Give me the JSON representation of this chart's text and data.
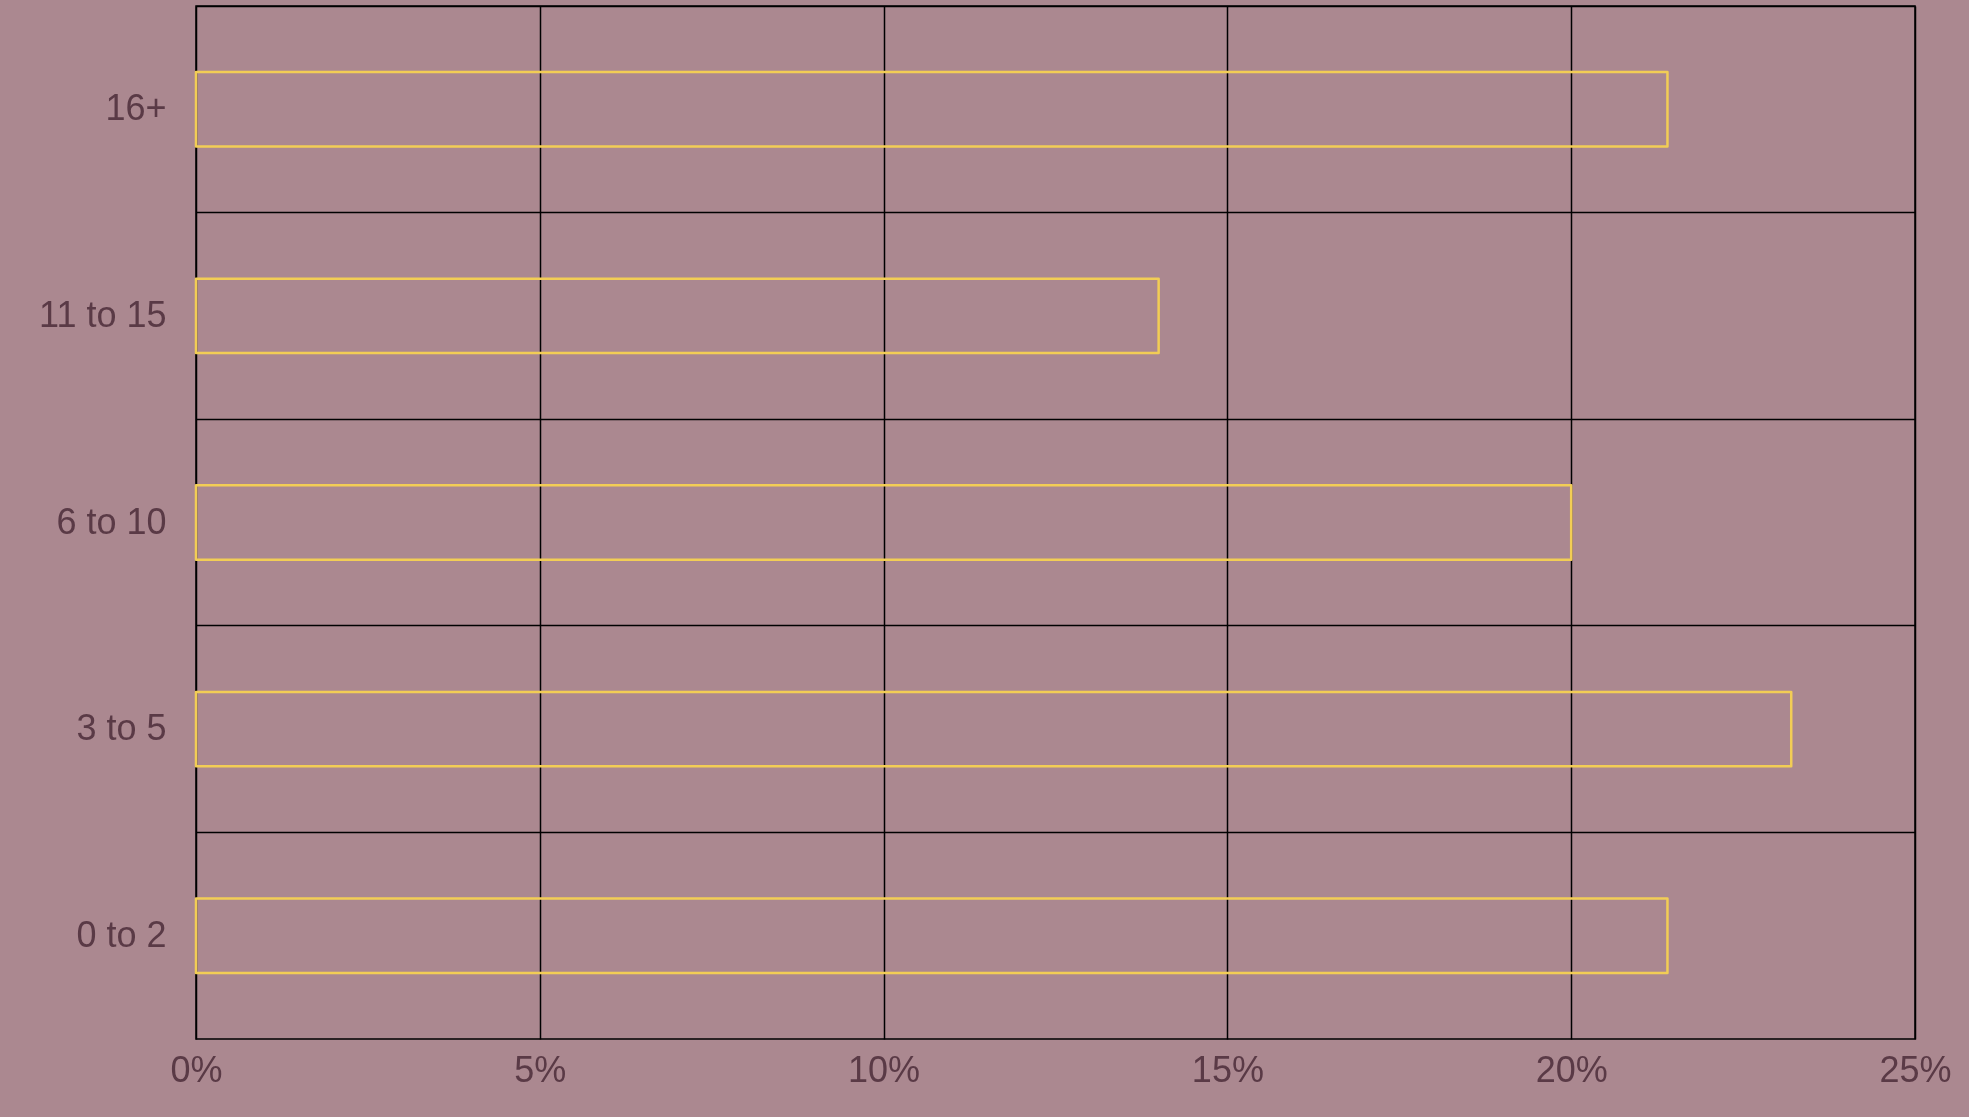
{
  "chart_data": {
    "type": "bar",
    "orientation": "horizontal",
    "categories": [
      "16+",
      "11 to 15",
      "6 to 10",
      "3 to 5",
      "0 to 2"
    ],
    "series": [
      {
        "color": "#f2cd55",
        "values": [
          21.4,
          14,
          20,
          23.2,
          21.4
        ]
      }
    ],
    "xlim": [
      0,
      25
    ],
    "xticks": [
      {
        "value": 0,
        "label": "0%"
      },
      {
        "value": 5,
        "label": "5%"
      },
      {
        "value": 10,
        "label": "10%"
      },
      {
        "value": 15,
        "label": "15%"
      },
      {
        "value": 20,
        "label": "20%"
      },
      {
        "value": 25,
        "label": "25%"
      }
    ],
    "grid": true
  }
}
